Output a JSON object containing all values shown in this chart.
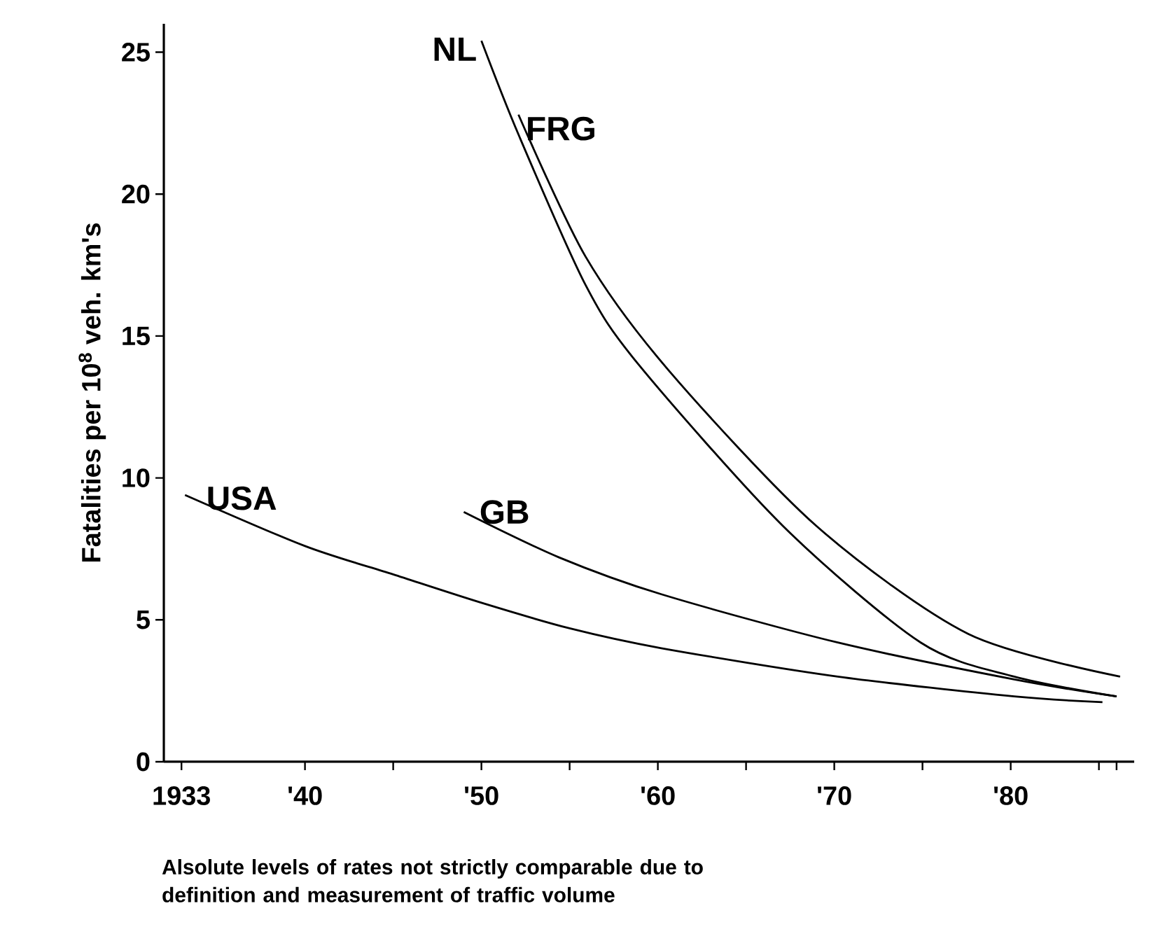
{
  "chart_data": {
    "type": "line",
    "ylabel": "Fatalities per 10$^{8}$ veh. km's",
    "xlim": [
      1932,
      1987
    ],
    "ylim": [
      0,
      26
    ],
    "xticks": [
      1933,
      {
        "value": 1940,
        "label": "'40"
      },
      {
        "value": 1945,
        "label": null
      },
      {
        "value": 1950,
        "label": "'50"
      },
      {
        "value": 1955,
        "label": null
      },
      {
        "value": 1960,
        "label": "'60"
      },
      {
        "value": 1965,
        "label": null
      },
      {
        "value": 1970,
        "label": "'70"
      },
      {
        "value": 1975,
        "label": null
      },
      {
        "value": 1980,
        "label": "'80"
      },
      {
        "value": 1985,
        "label": null
      },
      {
        "value": 1986,
        "label": null
      }
    ],
    "yticks": [
      0,
      5,
      10,
      15,
      20,
      25
    ],
    "grid": false,
    "legend": false,
    "marker": "none",
    "line_style": "solid",
    "series": [
      {
        "name": "NL",
        "color": "#000000",
        "x": [
          1950,
          1952.1,
          1955.9,
          1958.9,
          1967.1,
          1974.9,
          1980.2,
          1986
        ],
        "values": [
          25.4,
          22.1,
          16.8,
          14.0,
          8.3,
          4.2,
          3.0,
          2.3
        ]
      },
      {
        "name": "FRG",
        "color": "#000000",
        "x": [
          1952.1,
          1955.9,
          1960.6,
          1969,
          1977.6,
          1986.2
        ],
        "values": [
          22.8,
          17.8,
          13.8,
          8.3,
          4.5,
          3.0
        ]
      },
      {
        "name": "USA",
        "color": "#000000",
        "x": [
          1933.2,
          1940,
          1945,
          1950,
          1955,
          1960.2,
          1970.2,
          1980.2,
          1985.2
        ],
        "values": [
          9.4,
          7.6,
          6.6,
          5.6,
          4.7,
          4.0,
          3.0,
          2.3,
          2.1
        ]
      },
      {
        "name": "GB",
        "color": "#000000",
        "x": [
          1949,
          1954.4,
          1960.2,
          1970.2,
          1980.2,
          1986
        ],
        "values": [
          8.8,
          7.2,
          5.9,
          4.2,
          2.9,
          2.3
        ]
      }
    ],
    "annotations": [
      "Alsolute levels of rates not strictly comparable due to definition and measurement of traffic volume"
    ]
  }
}
